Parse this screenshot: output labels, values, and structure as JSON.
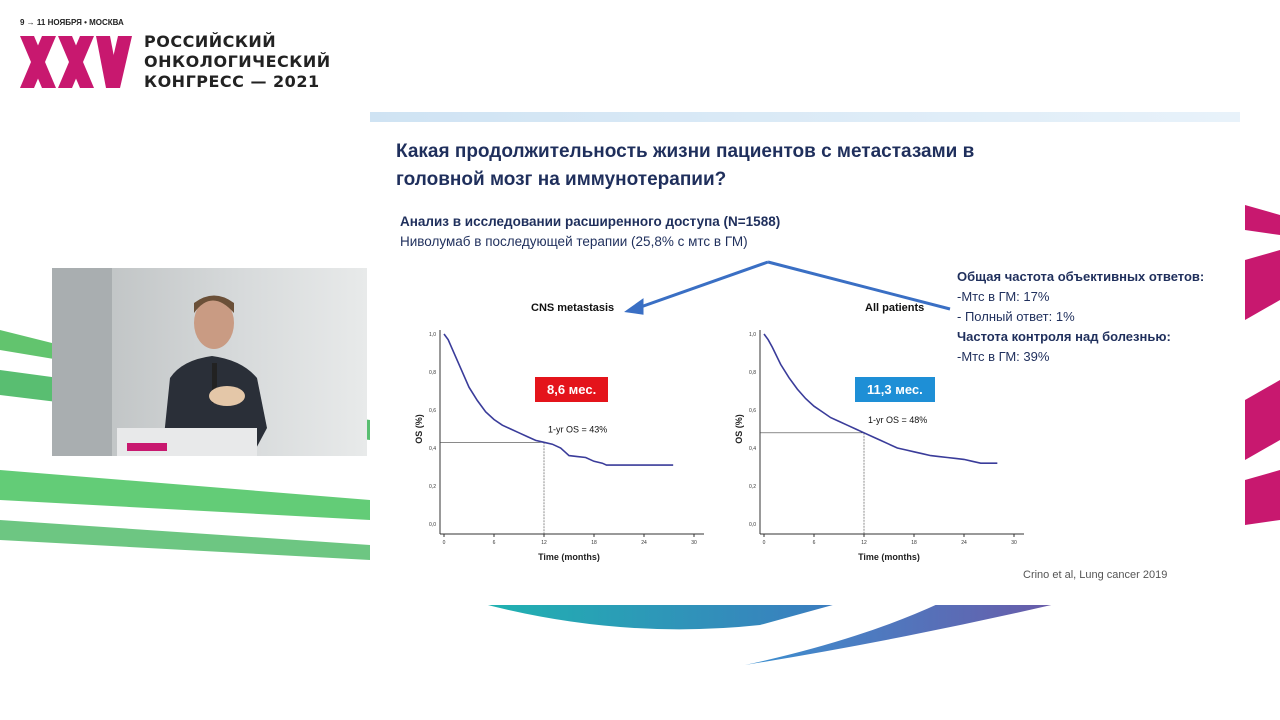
{
  "header": {
    "date": "9 → 11 НОЯБРЯ • МОСКВА",
    "logo_mark": "XXV",
    "congress_lines": [
      "РОССИЙСКИЙ",
      "ОНКОЛОГИЧЕСКИЙ",
      "КОНГРЕСС — 2021"
    ]
  },
  "slide": {
    "title": "Какая продолжительность жизни пациентов с метастазами в головной мозг на иммунотерапии?",
    "subtitle_bold": "Анализ в исследовании расширенного доступа (N=1588)",
    "subtitle": "Ниволумаб в последующей терапии (25,8% с мтс в ГМ)",
    "right_panel": [
      {
        "text": "Общая частота объективных ответов:",
        "bold": true
      },
      {
        "text": "-Мтс в ГМ: 17%",
        "bold": false
      },
      {
        "text": "- Полный ответ: 1%",
        "bold": false
      },
      {
        "text": "Частота контроля над болезнью:",
        "bold": true
      },
      {
        "text": "-Мтс в ГМ: 39%",
        "bold": false
      }
    ],
    "citation": "Crino et al, Lung cancer 2019",
    "colors": {
      "title": "#1f2f5c",
      "curve": "#3a3c9a",
      "badge_red": "#e4141b",
      "badge_blue": "#1e8fd6",
      "arrow": "#3a6fc4"
    }
  },
  "chart_data": [
    {
      "type": "line",
      "title": "CNS metastasis",
      "xlabel": "Time (months)",
      "ylabel": "OS (%)",
      "xlim": [
        0,
        30
      ],
      "ylim": [
        0,
        1
      ],
      "xticks": [
        "0",
        "6",
        "12",
        "18",
        "24",
        "30"
      ],
      "yticks": [
        "0,0",
        "0,2",
        "0,4",
        "0,6",
        "0,8",
        "1,0"
      ],
      "median_label": "8,6 мес.",
      "annotation": "1-yr OS = 43%",
      "reference": {
        "x": 12,
        "y": 0.43
      },
      "x": [
        0,
        0.5,
        1,
        2,
        3,
        4,
        5,
        6,
        7,
        8,
        9,
        10,
        11,
        12,
        13,
        14,
        14.5,
        15,
        16,
        17,
        18,
        19,
        19.5,
        22,
        25,
        27.5
      ],
      "y": [
        1.0,
        0.97,
        0.92,
        0.82,
        0.72,
        0.65,
        0.59,
        0.55,
        0.52,
        0.5,
        0.48,
        0.46,
        0.44,
        0.43,
        0.42,
        0.4,
        0.38,
        0.36,
        0.355,
        0.35,
        0.33,
        0.32,
        0.31,
        0.31,
        0.31,
        0.31
      ]
    },
    {
      "type": "line",
      "title": "All patients",
      "xlabel": "Time (months)",
      "ylabel": "OS (%)",
      "xlim": [
        0,
        30
      ],
      "ylim": [
        0,
        1
      ],
      "xticks": [
        "0",
        "6",
        "12",
        "18",
        "24",
        "30"
      ],
      "yticks": [
        "0,0",
        "0,2",
        "0,4",
        "0,6",
        "0,8",
        "1,0"
      ],
      "median_label": "11,3 мес.",
      "annotation": "1-yr OS = 48%",
      "reference": {
        "x": 12,
        "y": 0.48
      },
      "x": [
        0,
        0.5,
        1,
        2,
        3,
        4,
        5,
        6,
        7,
        8,
        9,
        10,
        11,
        12,
        13,
        14,
        15,
        16,
        17,
        18,
        19,
        20,
        21,
        22,
        23,
        24,
        25,
        26,
        28
      ],
      "y": [
        1.0,
        0.97,
        0.93,
        0.84,
        0.77,
        0.71,
        0.66,
        0.62,
        0.59,
        0.56,
        0.54,
        0.52,
        0.5,
        0.48,
        0.46,
        0.44,
        0.42,
        0.4,
        0.39,
        0.38,
        0.37,
        0.36,
        0.355,
        0.35,
        0.345,
        0.34,
        0.33,
        0.32,
        0.32
      ]
    }
  ]
}
